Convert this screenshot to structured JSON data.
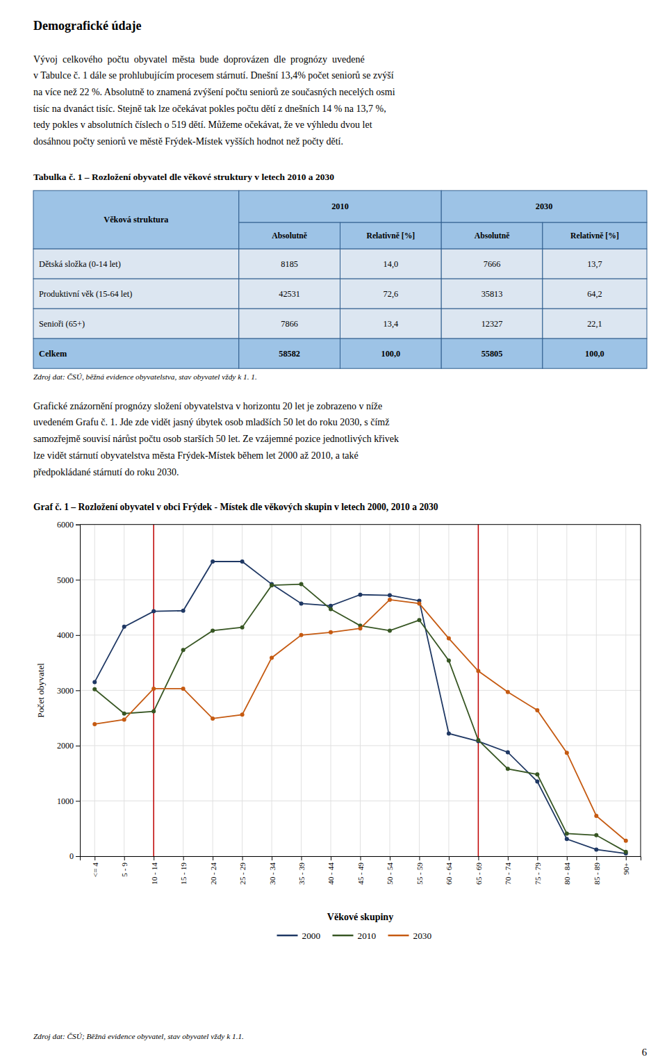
{
  "heading": "Demografické údaje",
  "paragraph1_lines": [
    "Vývoj  celkového  počtu  obyvatel  města  bude  doprovázen  dle  prognózy  uvedené",
    "v Tabulce č. 1 dále se prohlubujícím procesem stárnutí. Dnešní 13,4% počet seniorů se zvýší",
    "na více než 22 %. Absolutně to znamená zvýšení počtu seniorů ze současných necelých osmi",
    "tisíc na dvanáct tisíc. Stejně tak lze očekávat pokles počtu dětí z dnešních 14 % na 13,7 %,",
    "tedy pokles v absolutních číslech o 519 dětí. Můžeme očekávat, že ve výhledu dvou let",
    "dosáhnou počty seniorů ve městě Frýdek-Místek vyšších hodnot než počty dětí."
  ],
  "table": {
    "title": "Tabulka č. 1 – Rozložení obyvatel dle věkové struktury v letech 2010 a 2030",
    "header_row1": [
      "Věková struktura",
      "2010",
      "2030"
    ],
    "header_row2": [
      "Absolutně",
      "Relativně [%]",
      "Absolutně",
      "Relativně [%]"
    ],
    "rows": [
      [
        "Dětská složka (0-14 let)",
        "8185",
        "14,0",
        "7666",
        "13,7"
      ],
      [
        "Produktivní věk (15-64 let)",
        "42531",
        "72,6",
        "35813",
        "64,2"
      ],
      [
        "Senioři (65+)",
        "7866",
        "13,4",
        "12327",
        "22,1"
      ],
      [
        "Celkem",
        "58582",
        "100,0",
        "55805",
        "100,0"
      ]
    ],
    "source": "Zdroj dat: ČSÚ, běžná evidence obyvatelstva, stav obyvatel vždy k 1. 1.",
    "header_color": "#9dc3e6",
    "row_color": "#dce6f1",
    "total_row_color": "#9dc3e6",
    "border_color": "#2e5d8e"
  },
  "paragraph2_lines": [
    "Grafické znázornění prognózy složení obyvatelstva v horizontu 20 let je zobrazeno v níže",
    "uvedeném Grafu č. 1. Jde zde vidět jasný úbytek osob mladších 50 let do roku 2030, s čímž",
    "samozřejmě souvisí nárůst počtu osob starších 50 let. Ze vzájemné pozice jednotlivých křivek",
    "lze vidět stárnutí obyvatelstva města Frýdek-Místek během let 2000 až 2010, a také",
    "předpokládané stárnutí do roku 2030."
  ],
  "chart_data": {
    "type": "line",
    "title": "Graf č. 1 – Rozložení obyvatel v obci Frýdek - Místek dle věkových skupin v letech 2000, 2010 a 2030",
    "y_label": "Počet obyvatel",
    "legend_title": "Věkové skupiny",
    "categories": [
      "<= 4",
      "5 - 9",
      "10 - 14",
      "15 - 19",
      "20 - 24",
      "25 - 29",
      "30 - 34",
      "35 - 39",
      "40 - 44",
      "45 - 49",
      "50 - 54",
      "55 - 59",
      "60 - 64",
      "65 - 69",
      "70 - 74",
      "75 - 79",
      "80 - 84",
      "85 - 89",
      "90+"
    ],
    "series": [
      {
        "name": "2000",
        "color": "#1f3864",
        "values": [
          3150,
          4150,
          4430,
          4440,
          5330,
          5330,
          4920,
          4570,
          4530,
          4730,
          4720,
          4620,
          2220,
          2080,
          1880,
          1350,
          310,
          120,
          50
        ]
      },
      {
        "name": "2010",
        "color": "#375623",
        "values": [
          3020,
          2580,
          2620,
          3730,
          4080,
          4140,
          4900,
          4920,
          4470,
          4170,
          4080,
          4270,
          3540,
          2100,
          1580,
          1480,
          410,
          380,
          80
        ]
      },
      {
        "name": "2030",
        "color": "#c55a11",
        "values": [
          2390,
          2470,
          3030,
          3030,
          2490,
          2560,
          3590,
          4000,
          4050,
          4120,
          4640,
          4570,
          3940,
          3350,
          2970,
          2640,
          1870,
          730,
          280
        ]
      }
    ],
    "vlines": [
      {
        "category": "10 - 14",
        "color": "#c00000"
      },
      {
        "category": "65 - 69",
        "color": "#c00000"
      }
    ],
    "marker": "circle",
    "ylim": [
      0,
      6000
    ],
    "yticks": [
      0,
      1000,
      2000,
      3000,
      4000,
      5000,
      6000
    ],
    "grid": true,
    "legend": "bottom"
  },
  "chart_source": "Zdroj dat: ČSÚ; Běžná evidence obyvatel, stav obyvatel vždy k 1.1.",
  "page_number": "6"
}
